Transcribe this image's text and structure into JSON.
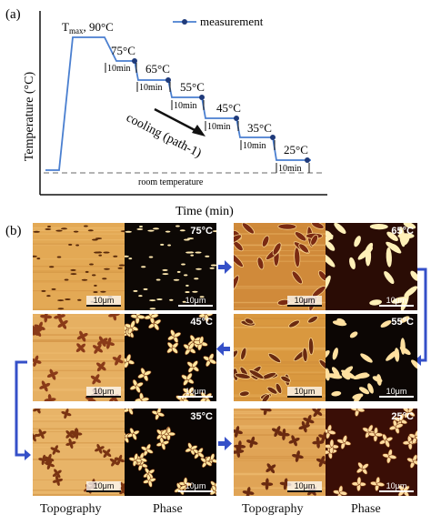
{
  "panel_a": {
    "label": "(a)",
    "ylabel": "Temperature (°C)",
    "xlabel": "Time (min)",
    "legend": "measurement",
    "tmax_main": "T",
    "tmax_sub": "max",
    "tmax_rest": ", 90°C",
    "room_temperature": "room temperature",
    "cooling_label": "cooling (path-1)",
    "steps": [
      "75°C",
      "65°C",
      "55°C",
      "45°C",
      "35°C",
      "25°C"
    ],
    "hold_label": "10min",
    "colors": {
      "profile": "#4a7fd0",
      "marker": "#1f3a7a",
      "room_line": "#888888"
    }
  },
  "panel_b": {
    "label": "(b)",
    "scale_bar": "10μm",
    "column_captions": [
      "Topography",
      "Phase",
      "Topography",
      "Phase"
    ],
    "left_rows": [
      {
        "temp": "75°C"
      },
      {
        "temp": "45°C"
      },
      {
        "temp": "35°C"
      }
    ],
    "right_rows": [
      {
        "temp": "65°C"
      },
      {
        "temp": "55°C"
      },
      {
        "temp": "25°C"
      }
    ],
    "colors": {
      "arrow": "#3550c8"
    }
  }
}
